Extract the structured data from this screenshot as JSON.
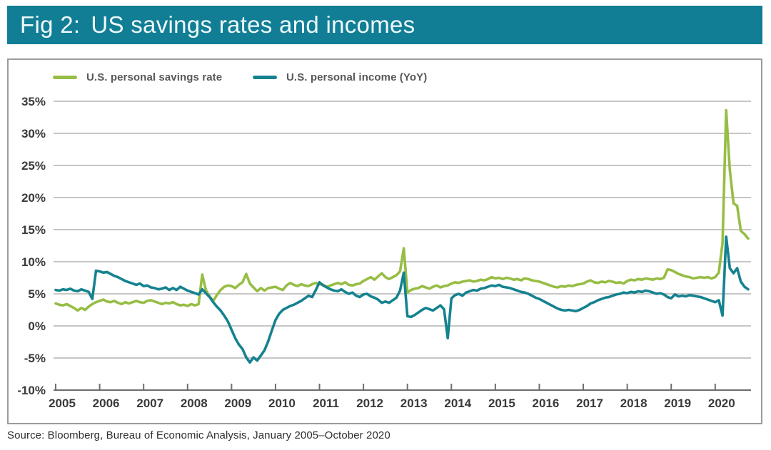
{
  "title": {
    "prefix": "Fig 2:",
    "text": "US savings rates and incomes"
  },
  "source": {
    "text": "Source: Bloomberg, Bureau of Economic Analysis, January 2005–October 2020"
  },
  "colors": {
    "header_bg": "#117E95",
    "header_text": "#EFF9FB",
    "savings_line": "#97BD44",
    "income_line": "#15828F",
    "grid": "#B3B3B3",
    "axis": "#6E6E6E",
    "tick_label": "#3A3A3C",
    "legend_text": "#58585B",
    "frame_border": "#9B9B9B",
    "source_text": "#2F2F2F"
  },
  "chart_data": {
    "type": "line",
    "x_frequency": "monthly",
    "x_start": "2005-01",
    "x_end": "2020-10",
    "x_tick_labels": [
      "2005",
      "2006",
      "2007",
      "2008",
      "2009",
      "2010",
      "2011",
      "2012",
      "2013",
      "2014",
      "2015",
      "2016",
      "2017",
      "2018",
      "2019",
      "2020"
    ],
    "y_tick_labels": [
      "35%",
      "30%",
      "25%",
      "20%",
      "15%",
      "10%",
      "5%",
      "0%",
      "-5%",
      "-10%"
    ],
    "y_ticks": [
      35,
      30,
      25,
      20,
      15,
      10,
      5,
      0,
      -5,
      -10
    ],
    "ylim": [
      -10,
      35
    ],
    "y_unit": "%",
    "grid": true,
    "legend_position": "top-left",
    "series": [
      {
        "name": "U.S. personal savings rate",
        "color": "#97BD44",
        "values": [
          3.5,
          3.3,
          3.2,
          3.4,
          3.1,
          2.8,
          2.4,
          2.8,
          2.5,
          3.0,
          3.4,
          3.7,
          3.9,
          4.1,
          3.8,
          3.7,
          3.9,
          3.6,
          3.4,
          3.7,
          3.5,
          3.7,
          3.9,
          3.7,
          3.6,
          3.9,
          4.0,
          3.8,
          3.6,
          3.4,
          3.6,
          3.5,
          3.7,
          3.4,
          3.2,
          3.3,
          3.1,
          3.4,
          3.2,
          3.4,
          8.0,
          5.6,
          4.6,
          3.9,
          4.8,
          5.6,
          6.1,
          6.3,
          6.2,
          5.9,
          6.4,
          6.8,
          8.1,
          6.6,
          6.0,
          5.4,
          5.9,
          5.5,
          5.9,
          6.0,
          6.1,
          5.8,
          5.6,
          6.3,
          6.7,
          6.4,
          6.2,
          6.5,
          6.3,
          6.2,
          6.5,
          6.7,
          6.5,
          6.4,
          6.1,
          6.3,
          6.5,
          6.7,
          6.5,
          6.8,
          6.4,
          6.3,
          6.5,
          6.6,
          7.0,
          7.3,
          7.6,
          7.2,
          7.7,
          8.2,
          7.6,
          7.3,
          7.6,
          7.9,
          8.5,
          12.1,
          5.2,
          5.6,
          5.8,
          5.9,
          6.2,
          6.0,
          5.8,
          6.1,
          6.3,
          6.0,
          6.2,
          6.3,
          6.6,
          6.8,
          6.7,
          6.9,
          7.0,
          7.1,
          6.9,
          7.0,
          7.2,
          7.1,
          7.3,
          7.6,
          7.4,
          7.5,
          7.3,
          7.5,
          7.4,
          7.2,
          7.3,
          7.1,
          7.4,
          7.3,
          7.1,
          7.0,
          6.9,
          6.7,
          6.5,
          6.3,
          6.1,
          6.0,
          6.2,
          6.1,
          6.3,
          6.2,
          6.4,
          6.5,
          6.6,
          6.9,
          7.1,
          6.8,
          6.7,
          6.9,
          6.8,
          7.0,
          6.9,
          6.7,
          6.8,
          6.6,
          7.0,
          7.2,
          7.1,
          7.3,
          7.2,
          7.4,
          7.3,
          7.2,
          7.4,
          7.3,
          7.5,
          8.8,
          8.7,
          8.4,
          8.1,
          7.9,
          7.7,
          7.6,
          7.4,
          7.5,
          7.6,
          7.5,
          7.6,
          7.4,
          7.6,
          8.3,
          12.9,
          33.6,
          24.3,
          19.1,
          18.7,
          14.8,
          14.3,
          13.6
        ]
      },
      {
        "name": "U.S. personal income (YoY)",
        "color": "#15828F",
        "values": [
          5.6,
          5.5,
          5.7,
          5.6,
          5.8,
          5.5,
          5.4,
          5.7,
          5.5,
          5.3,
          4.2,
          8.6,
          8.5,
          8.3,
          8.4,
          8.1,
          7.8,
          7.6,
          7.3,
          7.0,
          6.8,
          6.6,
          6.4,
          6.6,
          6.2,
          6.3,
          6.0,
          5.9,
          5.7,
          5.8,
          6.0,
          5.6,
          5.9,
          5.6,
          6.1,
          5.8,
          5.5,
          5.3,
          5.1,
          4.9,
          5.7,
          5.1,
          4.5,
          3.7,
          3.0,
          2.4,
          1.6,
          0.7,
          -0.6,
          -1.9,
          -2.9,
          -3.6,
          -4.9,
          -5.7,
          -4.9,
          -5.4,
          -4.6,
          -3.8,
          -2.4,
          -0.7,
          0.9,
          1.9,
          2.5,
          2.8,
          3.1,
          3.3,
          3.6,
          3.9,
          4.3,
          4.7,
          4.5,
          5.6,
          6.8,
          6.3,
          6.0,
          5.7,
          5.5,
          5.4,
          5.7,
          5.3,
          5.0,
          5.2,
          4.7,
          4.5,
          4.9,
          5.0,
          4.6,
          4.4,
          4.1,
          3.6,
          3.8,
          3.6,
          4.0,
          4.4,
          5.5,
          8.3,
          1.5,
          1.4,
          1.7,
          2.1,
          2.5,
          2.8,
          2.6,
          2.4,
          2.8,
          3.2,
          2.6,
          -1.9,
          4.3,
          4.8,
          5.0,
          4.7,
          5.2,
          5.4,
          5.6,
          5.5,
          5.8,
          5.9,
          6.1,
          6.3,
          6.2,
          6.4,
          6.1,
          6.0,
          5.9,
          5.7,
          5.5,
          5.3,
          5.2,
          5.0,
          4.7,
          4.4,
          4.2,
          3.9,
          3.6,
          3.3,
          3.0,
          2.7,
          2.5,
          2.4,
          2.5,
          2.4,
          2.3,
          2.5,
          2.8,
          3.1,
          3.5,
          3.7,
          4.0,
          4.2,
          4.4,
          4.5,
          4.7,
          4.9,
          5.0,
          5.2,
          5.1,
          5.3,
          5.2,
          5.4,
          5.3,
          5.5,
          5.4,
          5.2,
          5.0,
          5.1,
          4.9,
          4.5,
          4.3,
          4.9,
          4.6,
          4.7,
          4.6,
          4.8,
          4.7,
          4.6,
          4.5,
          4.3,
          4.1,
          3.9,
          3.7,
          4.0,
          1.6,
          13.9,
          9.0,
          8.2,
          9.0,
          6.9,
          6.1,
          5.7
        ]
      }
    ]
  }
}
